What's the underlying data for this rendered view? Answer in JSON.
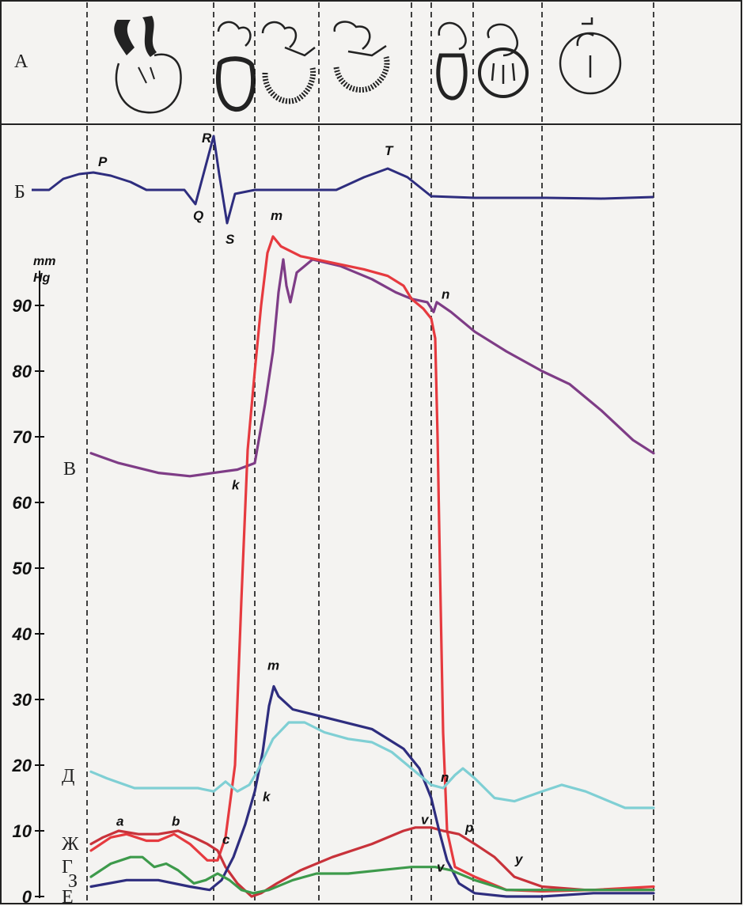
{
  "chart_data": {
    "type": "line",
    "unit_label": [
      "mm",
      "Hg"
    ],
    "ylim": [
      0,
      100
    ],
    "y_ticks": [
      0,
      10,
      20,
      30,
      40,
      50,
      60,
      70,
      80,
      90
    ],
    "x_domain": [
      0,
      1000
    ],
    "dividers": [
      110,
      270,
      322,
      403,
      520,
      545,
      598,
      685,
      826
    ],
    "row_labels": {
      "a": "А",
      "b": "Б",
      "v": "В",
      "g": "Г",
      "d": "Д",
      "e": "Е",
      "zh": "Ж",
      "z": "З"
    },
    "ecg": {
      "color": "#2e2d7e",
      "points": [
        [
          40,
          0
        ],
        [
          62,
          0
        ],
        [
          80,
          14
        ],
        [
          100,
          20
        ],
        [
          118,
          22
        ],
        [
          140,
          18
        ],
        [
          165,
          10
        ],
        [
          185,
          0
        ],
        [
          233,
          0
        ],
        [
          247,
          -18
        ],
        [
          270,
          68
        ],
        [
          277,
          20
        ],
        [
          287,
          -42
        ],
        [
          297,
          -5
        ],
        [
          322,
          0
        ],
        [
          380,
          0
        ],
        [
          425,
          0
        ],
        [
          460,
          16
        ],
        [
          490,
          27
        ],
        [
          515,
          16
        ],
        [
          545,
          -8
        ],
        [
          600,
          -10
        ],
        [
          690,
          -10
        ],
        [
          760,
          -11
        ],
        [
          826,
          -9
        ]
      ],
      "labels": [
        {
          "text": "P",
          "x": 124,
          "y": 30
        },
        {
          "text": "R",
          "x": 255,
          "y": 60
        },
        {
          "text": "Q",
          "x": 244,
          "y": -38
        },
        {
          "text": "S",
          "x": 285,
          "y": -68
        },
        {
          "text": "T",
          "x": 486,
          "y": 44
        }
      ]
    },
    "series": [
      {
        "key": "aortic",
        "color": "#7e3c86",
        "points": [
          [
            115,
            67.5
          ],
          [
            150,
            66
          ],
          [
            200,
            64.5
          ],
          [
            240,
            64
          ],
          [
            270,
            64.5
          ],
          [
            300,
            65
          ],
          [
            322,
            66
          ],
          [
            335,
            75
          ],
          [
            345,
            83
          ],
          [
            352,
            92
          ],
          [
            358,
            97
          ],
          [
            362,
            93
          ],
          [
            367,
            90.5
          ],
          [
            375,
            95
          ],
          [
            395,
            97
          ],
          [
            430,
            96
          ],
          [
            470,
            94
          ],
          [
            500,
            92
          ],
          [
            520,
            91
          ],
          [
            540,
            90.5
          ],
          [
            548,
            89
          ],
          [
            552,
            90.5
          ],
          [
            570,
            89
          ],
          [
            600,
            86
          ],
          [
            640,
            83
          ],
          [
            685,
            80
          ],
          [
            720,
            78
          ],
          [
            760,
            74
          ],
          [
            800,
            69.5
          ],
          [
            826,
            67.5
          ]
        ],
        "labels": [
          {
            "text": "k",
            "x": 293,
            "y": 62
          },
          {
            "text": "n",
            "x": 558,
            "y": 91
          }
        ]
      },
      {
        "key": "lv",
        "color": "#e63a3f",
        "points": [
          [
            115,
            7
          ],
          [
            140,
            9
          ],
          [
            160,
            9.5
          ],
          [
            185,
            8.5
          ],
          [
            200,
            8.5
          ],
          [
            220,
            9.5
          ],
          [
            240,
            8
          ],
          [
            262,
            5.5
          ],
          [
            275,
            5.5
          ],
          [
            285,
            9
          ],
          [
            297,
            20
          ],
          [
            305,
            45
          ],
          [
            313,
            68
          ],
          [
            322,
            80
          ],
          [
            330,
            90
          ],
          [
            338,
            98
          ],
          [
            345,
            100.5
          ],
          [
            355,
            99
          ],
          [
            380,
            97.5
          ],
          [
            420,
            96.5
          ],
          [
            460,
            95.5
          ],
          [
            490,
            94.5
          ],
          [
            510,
            93
          ],
          [
            520,
            91
          ],
          [
            535,
            89.5
          ],
          [
            545,
            88
          ],
          [
            550,
            85
          ],
          [
            553,
            70
          ],
          [
            556,
            50
          ],
          [
            560,
            25
          ],
          [
            565,
            10
          ],
          [
            575,
            4.5
          ],
          [
            600,
            3
          ],
          [
            640,
            1
          ],
          [
            685,
            0.8
          ],
          [
            750,
            1
          ],
          [
            826,
            1.5
          ]
        ],
        "labels": [
          {
            "text": "m",
            "x": 342,
            "y": 103
          }
        ]
      },
      {
        "key": "atrial",
        "color": "#c8323a",
        "points": [
          [
            115,
            8
          ],
          [
            130,
            9
          ],
          [
            150,
            10
          ],
          [
            175,
            9.5
          ],
          [
            200,
            9.5
          ],
          [
            225,
            10
          ],
          [
            245,
            9
          ],
          [
            262,
            8
          ],
          [
            275,
            7
          ],
          [
            285,
            4.5
          ],
          [
            300,
            2
          ],
          [
            318,
            0
          ],
          [
            330,
            0.5
          ],
          [
            350,
            2
          ],
          [
            380,
            4
          ],
          [
            420,
            6
          ],
          [
            470,
            8
          ],
          [
            510,
            10
          ],
          [
            525,
            10.5
          ],
          [
            545,
            10.5
          ],
          [
            560,
            10
          ],
          [
            580,
            9.5
          ],
          [
            600,
            8
          ],
          [
            625,
            6
          ],
          [
            650,
            3
          ],
          [
            685,
            1.5
          ],
          [
            740,
            1
          ],
          [
            826,
            1
          ]
        ],
        "labels": [
          {
            "text": "a",
            "x": 147,
            "y": 10.8
          },
          {
            "text": "b",
            "x": 217,
            "y": 10.8
          },
          {
            "text": "c",
            "x": 281,
            "y": 8
          },
          {
            "text": "v",
            "x": 532,
            "y": 11
          },
          {
            "text": "p",
            "x": 588,
            "y": 9.8
          }
        ]
      },
      {
        "key": "rv",
        "color": "#2e2d7e",
        "points": [
          [
            115,
            1.5
          ],
          [
            160,
            2.5
          ],
          [
            200,
            2.5
          ],
          [
            240,
            1.5
          ],
          [
            265,
            1
          ],
          [
            280,
            2.5
          ],
          [
            295,
            6
          ],
          [
            310,
            11
          ],
          [
            322,
            16
          ],
          [
            332,
            22
          ],
          [
            340,
            29
          ],
          [
            346,
            32
          ],
          [
            352,
            30.5
          ],
          [
            370,
            28.5
          ],
          [
            420,
            27
          ],
          [
            470,
            25.5
          ],
          [
            510,
            22.5
          ],
          [
            530,
            19.5
          ],
          [
            545,
            15
          ],
          [
            555,
            10
          ],
          [
            565,
            5.5
          ],
          [
            580,
            2
          ],
          [
            600,
            0.5
          ],
          [
            640,
            0
          ],
          [
            685,
            0
          ],
          [
            750,
            0.5
          ],
          [
            826,
            0.5
          ]
        ],
        "labels": [
          {
            "text": "m",
            "x": 338,
            "y": 34.5
          },
          {
            "text": "k",
            "x": 332,
            "y": 14.5
          },
          {
            "text": "n",
            "x": 557,
            "y": 17.5
          }
        ]
      },
      {
        "key": "pulmonary",
        "color": "#7fcfd4",
        "points": [
          [
            115,
            19
          ],
          [
            135,
            18
          ],
          [
            170,
            16.5
          ],
          [
            210,
            16.5
          ],
          [
            250,
            16.5
          ],
          [
            270,
            16
          ],
          [
            285,
            17.5
          ],
          [
            300,
            16
          ],
          [
            315,
            17
          ],
          [
            325,
            19
          ],
          [
            345,
            24
          ],
          [
            365,
            26.5
          ],
          [
            385,
            26.5
          ],
          [
            410,
            25
          ],
          [
            440,
            24
          ],
          [
            470,
            23.5
          ],
          [
            495,
            22
          ],
          [
            520,
            19.5
          ],
          [
            545,
            17
          ],
          [
            560,
            16.5
          ],
          [
            575,
            18.5
          ],
          [
            585,
            19.5
          ],
          [
            600,
            18
          ],
          [
            625,
            15
          ],
          [
            650,
            14.5
          ],
          [
            685,
            16
          ],
          [
            710,
            17
          ],
          [
            740,
            16
          ],
          [
            790,
            13.5
          ],
          [
            826,
            13.5
          ]
        ],
        "labels": []
      },
      {
        "key": "green",
        "color": "#3d9a4b",
        "points": [
          [
            115,
            3
          ],
          [
            140,
            5
          ],
          [
            165,
            6
          ],
          [
            180,
            6
          ],
          [
            195,
            4.5
          ],
          [
            210,
            5
          ],
          [
            225,
            4
          ],
          [
            245,
            2
          ],
          [
            260,
            2.5
          ],
          [
            275,
            3.5
          ],
          [
            290,
            2.5
          ],
          [
            305,
            1
          ],
          [
            320,
            0.5
          ],
          [
            340,
            1
          ],
          [
            370,
            2.5
          ],
          [
            400,
            3.5
          ],
          [
            440,
            3.5
          ],
          [
            480,
            4
          ],
          [
            520,
            4.5
          ],
          [
            550,
            4.5
          ],
          [
            570,
            4
          ],
          [
            600,
            2.5
          ],
          [
            640,
            1
          ],
          [
            685,
            1
          ],
          [
            740,
            1
          ],
          [
            826,
            1
          ]
        ],
        "labels": [
          {
            "text": "v",
            "x": 552,
            "y": 3.8
          },
          {
            "text": "y",
            "x": 651,
            "y": 5
          }
        ]
      }
    ]
  }
}
